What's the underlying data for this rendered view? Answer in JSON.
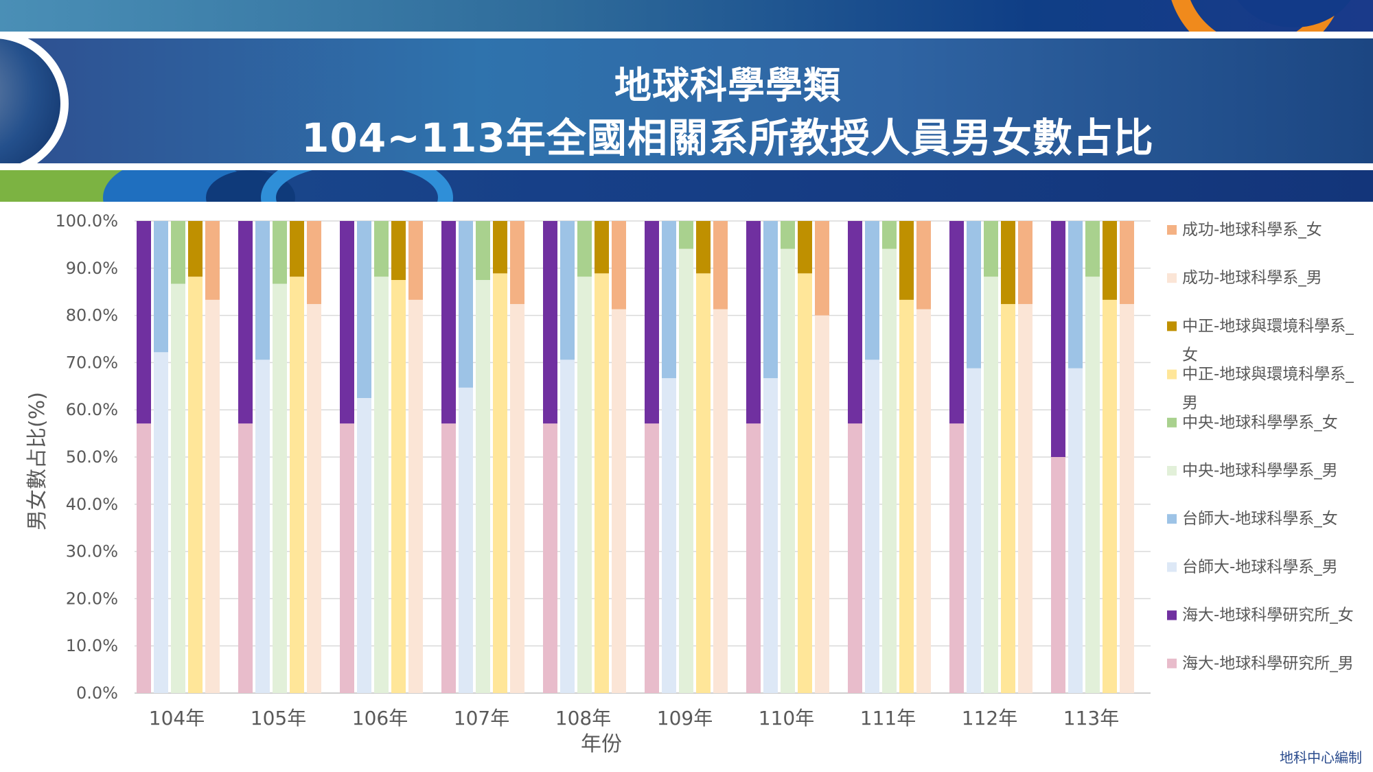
{
  "header": {
    "title_line1": "地球科學學類",
    "title_line2": "104~113年全國相關系所教授人員男女數占比"
  },
  "footer": {
    "credit": "地科中心編制"
  },
  "chart_data": {
    "type": "bar",
    "stacked_percent": true,
    "title": "地球科學學類 104~113年全國相關系所教授人員男女數占比",
    "xlabel": "年份",
    "ylabel": "男女數占比(%)",
    "ylim": [
      0,
      100
    ],
    "yticks": [
      "0.0%",
      "10.0%",
      "20.0%",
      "30.0%",
      "40.0%",
      "50.0%",
      "60.0%",
      "70.0%",
      "80.0%",
      "90.0%",
      "100.0%"
    ],
    "grid": true,
    "legend_position": "right",
    "categories": [
      "104年",
      "105年",
      "106年",
      "107年",
      "108年",
      "109年",
      "110年",
      "111年",
      "112年",
      "113年"
    ],
    "departments": [
      {
        "name": "海大-地球科學研究所",
        "male_label": "海大-地球科學研究所_男",
        "female_label": "海大-地球科學研究所_女",
        "male_color": "#e8bccb",
        "female_color": "#7030a0",
        "male_pct": [
          57.1,
          57.1,
          57.1,
          57.1,
          57.1,
          57.1,
          57.1,
          57.1,
          57.1,
          50.0
        ]
      },
      {
        "name": "台師大-地球科學系",
        "male_label": "台師大-地球科學系_男",
        "female_label": "台師大-地球科學系_女",
        "male_color": "#dde8f6",
        "female_color": "#9dc3e6",
        "male_pct": [
          72.2,
          70.6,
          62.5,
          64.7,
          70.6,
          66.7,
          66.7,
          70.6,
          68.8,
          68.8
        ]
      },
      {
        "name": "中央-地球科學學系",
        "male_label": "中央-地球科學學系_男",
        "female_label": "中央-地球科學學系_女",
        "male_color": "#e2f0d9",
        "female_color": "#a9d18e",
        "male_pct": [
          86.7,
          86.7,
          88.2,
          87.5,
          88.2,
          94.1,
          94.1,
          94.1,
          88.2,
          88.2
        ]
      },
      {
        "name": "中正-地球與環境科學系",
        "male_label": "中正-地球與環境科學系_男",
        "female_label": "中正-地球與環境科學系_女",
        "male_color": "#ffe699",
        "female_color": "#bf9000",
        "male_pct": [
          88.2,
          88.2,
          87.5,
          88.9,
          88.9,
          88.9,
          88.9,
          83.3,
          82.4,
          83.3
        ]
      },
      {
        "name": "成功-地球科學系",
        "male_label": "成功-地球科學系_男",
        "female_label": "成功-地球科學系_女",
        "male_color": "#fbe5d6",
        "female_color": "#f4b183",
        "male_pct": [
          83.3,
          82.4,
          83.3,
          82.4,
          81.3,
          81.3,
          80.0,
          81.3,
          82.4,
          82.4
        ]
      }
    ],
    "legend": [
      {
        "label": "成功-地球科學系_女",
        "color": "#f4b183"
      },
      {
        "label": "成功-地球科學系_男",
        "color": "#fbe5d6"
      },
      {
        "label": "中正-地球與環境科學系_女",
        "color": "#bf9000"
      },
      {
        "label": "中正-地球與環境科學系_男",
        "color": "#ffe699"
      },
      {
        "label": "中央-地球科學學系_女",
        "color": "#a9d18e"
      },
      {
        "label": "中央-地球科學學系_男",
        "color": "#e2f0d9"
      },
      {
        "label": "台師大-地球科學系_女",
        "color": "#9dc3e6"
      },
      {
        "label": "台師大-地球科學系_男",
        "color": "#dde8f6"
      },
      {
        "label": "海大-地球科學研究所_女",
        "color": "#7030a0"
      },
      {
        "label": "海大-地球科學研究所_男",
        "color": "#e8bccb"
      }
    ]
  }
}
